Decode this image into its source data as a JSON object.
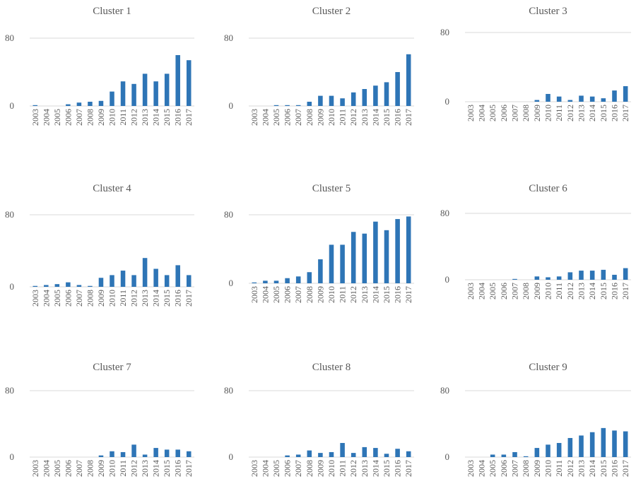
{
  "chart_data": [
    {
      "type": "bar",
      "title": "Cluster 1",
      "categories": [
        "2003",
        "2004",
        "2005",
        "2006",
        "2007",
        "2008",
        "2009",
        "2010",
        "2011",
        "2012",
        "2013",
        "2014",
        "2015",
        "2016",
        "2017"
      ],
      "values": [
        1,
        0,
        0,
        2,
        4,
        5,
        6,
        17,
        29,
        26,
        38,
        29,
        38,
        60,
        54
      ],
      "ylim": [
        0,
        80
      ],
      "yticks": [
        "0",
        "80"
      ],
      "color": "#2e75b6"
    },
    {
      "type": "bar",
      "title": "Cluster 2",
      "categories": [
        "2003",
        "2004",
        "2005",
        "2006",
        "2007",
        "2008",
        "2009",
        "2010",
        "2011",
        "2012",
        "2013",
        "2014",
        "2015",
        "2016",
        "2017"
      ],
      "values": [
        0,
        0,
        1,
        1,
        1,
        5,
        12,
        12,
        9,
        16,
        20,
        24,
        28,
        40,
        61
      ],
      "ylim": [
        0,
        80
      ],
      "yticks": [
        "0",
        "80"
      ],
      "color": "#2e75b6"
    },
    {
      "type": "bar",
      "title": "Cluster 3",
      "categories": [
        "2003",
        "2004",
        "2005",
        "2006",
        "2007",
        "2008",
        "2009",
        "2010",
        "2011",
        "2012",
        "2013",
        "2014",
        "2015",
        "2016",
        "2017"
      ],
      "values": [
        0,
        0,
        0,
        0,
        0,
        0,
        2,
        9,
        6,
        2,
        7,
        6,
        4,
        13,
        18
      ],
      "ylim": [
        0,
        80
      ],
      "yticks": [
        "0",
        "80"
      ],
      "color": "#2e75b6"
    },
    {
      "type": "bar",
      "title": "Cluster 4",
      "categories": [
        "2003",
        "2004",
        "2005",
        "2006",
        "2007",
        "2008",
        "2009",
        "2010",
        "2011",
        "2012",
        "2013",
        "2014",
        "2015",
        "2016",
        "2017"
      ],
      "values": [
        1,
        2,
        3,
        5,
        2,
        1,
        10,
        13,
        18,
        13,
        32,
        20,
        13,
        24,
        13
      ],
      "ylim": [
        0,
        80
      ],
      "yticks": [
        "0",
        "80"
      ],
      "color": "#2e75b6"
    },
    {
      "type": "bar",
      "title": "Cluster 5",
      "categories": [
        "2003",
        "2004",
        "2005",
        "2006",
        "2007",
        "2008",
        "2009",
        "2010",
        "2011",
        "2012",
        "2013",
        "2014",
        "2015",
        "2016",
        "2017"
      ],
      "values": [
        1,
        3,
        3,
        6,
        8,
        13,
        28,
        45,
        45,
        60,
        58,
        72,
        62,
        75,
        78
      ],
      "ylim": [
        0,
        80
      ],
      "yticks": [
        "0",
        "80"
      ],
      "color": "#2e75b6"
    },
    {
      "type": "bar",
      "title": "Cluster 6",
      "categories": [
        "2003",
        "2004",
        "2005",
        "2006",
        "2007",
        "2008",
        "2009",
        "2010",
        "2011",
        "2012",
        "2013",
        "2014",
        "2015",
        "2016",
        "2017"
      ],
      "values": [
        0,
        0,
        0,
        0,
        1,
        0,
        4,
        3,
        4,
        9,
        11,
        11,
        12,
        6,
        14
      ],
      "ylim": [
        0,
        80
      ],
      "yticks": [
        "0",
        "80"
      ],
      "color": "#2e75b6"
    },
    {
      "type": "bar",
      "title": "Cluster 7",
      "categories": [
        "2003",
        "2004",
        "2005",
        "2006",
        "2007",
        "2008",
        "2009",
        "2010",
        "2011",
        "2012",
        "2013",
        "2014",
        "2015",
        "2016",
        "2017"
      ],
      "values": [
        0,
        0,
        0,
        0,
        0,
        0,
        2,
        7,
        6,
        15,
        3,
        11,
        9,
        9,
        7
      ],
      "ylim": [
        0,
        80
      ],
      "yticks": [
        "0",
        "80"
      ],
      "color": "#2e75b6"
    },
    {
      "type": "bar",
      "title": "Cluster 8",
      "categories": [
        "2003",
        "2004",
        "2005",
        "2006",
        "2007",
        "2008",
        "2009",
        "2010",
        "2011",
        "2012",
        "2013",
        "2014",
        "2015",
        "2016",
        "2017"
      ],
      "values": [
        0,
        0,
        0,
        2,
        3,
        8,
        5,
        6,
        17,
        5,
        12,
        11,
        4,
        10,
        7
      ],
      "ylim": [
        0,
        80
      ],
      "yticks": [
        "0",
        "80"
      ],
      "color": "#2e75b6"
    },
    {
      "type": "bar",
      "title": "Cluster 9",
      "categories": [
        "2003",
        "2004",
        "2005",
        "2006",
        "2007",
        "2008",
        "2009",
        "2010",
        "2011",
        "2012",
        "2013",
        "2014",
        "2015",
        "2016",
        "2017"
      ],
      "values": [
        0,
        0,
        3,
        3,
        6,
        1,
        11,
        15,
        17,
        23,
        26,
        30,
        35,
        32,
        31
      ],
      "ylim": [
        0,
        80
      ],
      "yticks": [
        "0",
        "80"
      ],
      "color": "#2e75b6"
    }
  ]
}
